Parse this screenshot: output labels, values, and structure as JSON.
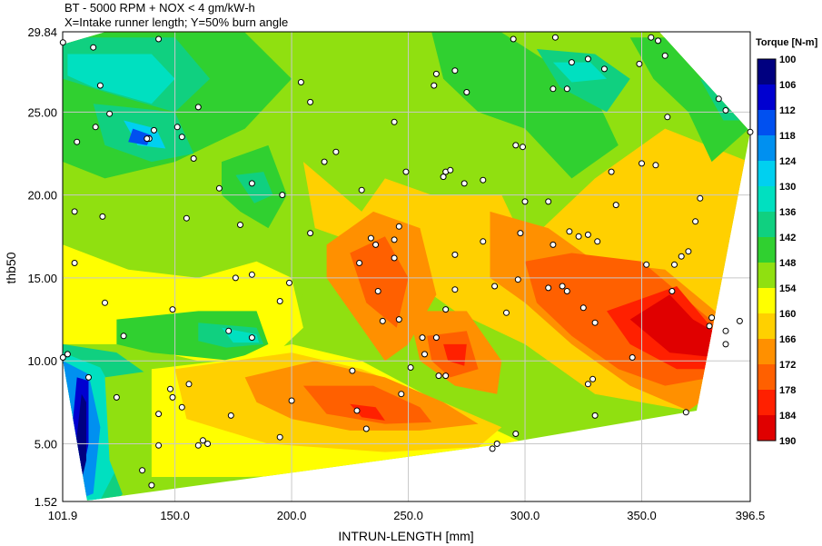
{
  "chart_data": {
    "type": "contour",
    "title": "BT - 5000 RPM + NOX < 4 gm/kW-h",
    "subtitle": "X=Intake runner length; Y=50% burn angle",
    "xlabel": "INTRUN-LENGTH [mm]",
    "ylabel": "thb50",
    "xlim": [
      101.9,
      396.5
    ],
    "ylim": [
      1.52,
      29.84
    ],
    "x_ticks": [
      "101.9",
      "150.0",
      "200.0",
      "250.0",
      "300.0",
      "350.0",
      "396.5"
    ],
    "x_tick_values": [
      101.9,
      150,
      200,
      250,
      300,
      350,
      396.5
    ],
    "y_ticks": [
      "1.52",
      "5.00",
      "10.00",
      "15.00",
      "20.00",
      "25.00",
      "29.84"
    ],
    "y_tick_values": [
      1.52,
      5,
      10,
      15,
      20,
      25,
      29.84
    ],
    "grid": true,
    "legend": {
      "title": "Torque [N-m]",
      "placement": "right",
      "levels": [
        "100",
        "106",
        "112",
        "118",
        "124",
        "130",
        "136",
        "142",
        "148",
        "154",
        "160",
        "166",
        "172",
        "178",
        "184",
        "190"
      ],
      "colors": [
        "#000080",
        "#0000d0",
        "#0050f0",
        "#0090f0",
        "#00d0f0",
        "#00e0c0",
        "#10d080",
        "#30d030",
        "#90e010",
        "#ffff00",
        "#ffd000",
        "#ff9000",
        "#ff6000",
        "#ff2000",
        "#e00000"
      ]
    },
    "points": [
      [
        102,
        29.2
      ],
      [
        115,
        28.9
      ],
      [
        118,
        26.6
      ],
      [
        122,
        24.9
      ],
      [
        108,
        23.2
      ],
      [
        116,
        24.1
      ],
      [
        139,
        23.4
      ],
      [
        138,
        23.4
      ],
      [
        141,
        23.9
      ],
      [
        143,
        29.4
      ],
      [
        160,
        25.3
      ],
      [
        151,
        24.1
      ],
      [
        153,
        23.5
      ],
      [
        158,
        22.2
      ],
      [
        169,
        20.4
      ],
      [
        183,
        20.7
      ],
      [
        196,
        20.0
      ],
      [
        178,
        18.2
      ],
      [
        155,
        18.6
      ],
      [
        119,
        18.7
      ],
      [
        107,
        19.0
      ],
      [
        107,
        15.9
      ],
      [
        120,
        13.5
      ],
      [
        149,
        13.1
      ],
      [
        176,
        15.0
      ],
      [
        183,
        15.2
      ],
      [
        195,
        13.6
      ],
      [
        199,
        14.7
      ],
      [
        173,
        11.8
      ],
      [
        183,
        11.4
      ],
      [
        128,
        11.5
      ],
      [
        104,
        10.4
      ],
      [
        102,
        10.2
      ],
      [
        113,
        9.0
      ],
      [
        125,
        7.8
      ],
      [
        136,
        3.4
      ],
      [
        143,
        4.9
      ],
      [
        140,
        2.5
      ],
      [
        143,
        6.8
      ],
      [
        149,
        7.8
      ],
      [
        148,
        8.3
      ],
      [
        153,
        7.2
      ],
      [
        156,
        8.6
      ],
      [
        160,
        4.9
      ],
      [
        162,
        5.2
      ],
      [
        164,
        5.0
      ],
      [
        174,
        6.7
      ],
      [
        195,
        5.4
      ],
      [
        200,
        7.6
      ],
      [
        208,
        17.7
      ],
      [
        214,
        22.0
      ],
      [
        208,
        25.6
      ],
      [
        204,
        26.8
      ],
      [
        219,
        22.6
      ],
      [
        230,
        20.3
      ],
      [
        236,
        17.0
      ],
      [
        234,
        17.4
      ],
      [
        229,
        15.9
      ],
      [
        237,
        14.2
      ],
      [
        244,
        16.2
      ],
      [
        239,
        12.4
      ],
      [
        246,
        12.5
      ],
      [
        251,
        9.6
      ],
      [
        257,
        10.4
      ],
      [
        263,
        9.1
      ],
      [
        266,
        9.1
      ],
      [
        244,
        17.3
      ],
      [
        246,
        18.1
      ],
      [
        256,
        11.4
      ],
      [
        262,
        11.4
      ],
      [
        266,
        13.1
      ],
      [
        270,
        14.3
      ],
      [
        270,
        16.4
      ],
      [
        265,
        21.1
      ],
      [
        266,
        21.4
      ],
      [
        268,
        21.5
      ],
      [
        274,
        20.7
      ],
      [
        261,
        26.6
      ],
      [
        262,
        27.3
      ],
      [
        270,
        27.5
      ],
      [
        275,
        26.2
      ],
      [
        282,
        20.9
      ],
      [
        282,
        17.2
      ],
      [
        287,
        14.5
      ],
      [
        292,
        12.9
      ],
      [
        297,
        14.9
      ],
      [
        298,
        17.7
      ],
      [
        300,
        19.6
      ],
      [
        296,
        23.0
      ],
      [
        299,
        22.9
      ],
      [
        310,
        19.6
      ],
      [
        312,
        17.0
      ],
      [
        316,
        14.5
      ],
      [
        319,
        17.8
      ],
      [
        323,
        17.5
      ],
      [
        310,
        14.4
      ],
      [
        318,
        14.2
      ],
      [
        325,
        13.2
      ],
      [
        330,
        12.3
      ],
      [
        329,
        8.9
      ],
      [
        330,
        6.7
      ],
      [
        327,
        8.6
      ],
      [
        296,
        5.6
      ],
      [
        288,
        5.0
      ],
      [
        312,
        26.4
      ],
      [
        318,
        26.4
      ],
      [
        320,
        28.0
      ],
      [
        327,
        28.2
      ],
      [
        334,
        27.6
      ],
      [
        349,
        27.9
      ],
      [
        357,
        29.3
      ],
      [
        354,
        29.5
      ],
      [
        360,
        28.4
      ],
      [
        361,
        24.7
      ],
      [
        356,
        21.8
      ],
      [
        350,
        21.9
      ],
      [
        337,
        21.4
      ],
      [
        339,
        19.4
      ],
      [
        327,
        17.6
      ],
      [
        331,
        17.2
      ],
      [
        352,
        15.8
      ],
      [
        364,
        15.8
      ],
      [
        367,
        16.3
      ],
      [
        370,
        16.6
      ],
      [
        373,
        18.4
      ],
      [
        375,
        19.8
      ],
      [
        383,
        25.8
      ],
      [
        386,
        25.1
      ],
      [
        396.5,
        23.8
      ],
      [
        392,
        12.4
      ],
      [
        386,
        11.0
      ],
      [
        386,
        11.8
      ],
      [
        380,
        12.6
      ],
      [
        379,
        12.1
      ],
      [
        363,
        14.2
      ],
      [
        346,
        10.2
      ],
      [
        369,
        6.9
      ],
      [
        232,
        5.9
      ],
      [
        228,
        7.0
      ],
      [
        226,
        9.4
      ],
      [
        247,
        8.0
      ],
      [
        286,
        4.7
      ],
      [
        295,
        29.4
      ],
      [
        313,
        29.5
      ],
      [
        244,
        24.4
      ],
      [
        249,
        21.4
      ]
    ]
  }
}
